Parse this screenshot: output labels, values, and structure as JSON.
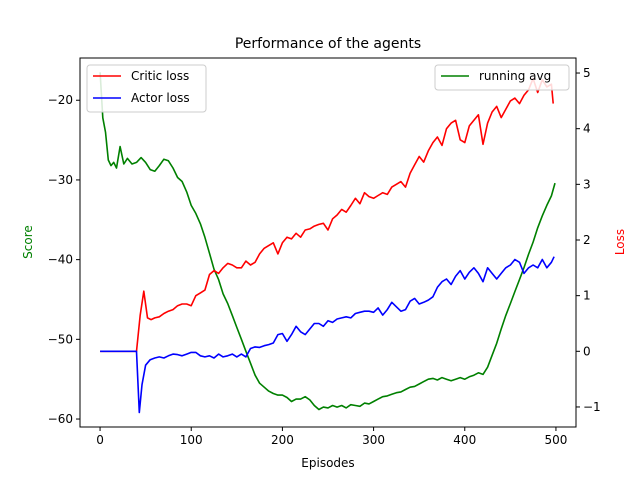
{
  "chart_data": {
    "type": "line",
    "title": "Performance of the agents",
    "xlabel": "Episodes",
    "ylabel_left": "Score",
    "ylabel_right": "Loss",
    "ylabel_left_color": "#008000",
    "ylabel_right_color": "#ff0000",
    "xlim": [
      -22,
      522
    ],
    "ylim_left": [
      -61,
      -14.7
    ],
    "ylim_right": [
      -1.36,
      5.27
    ],
    "x_ticks": [
      0,
      100,
      200,
      300,
      400,
      500
    ],
    "y_left_ticks": [
      -60,
      -50,
      -40,
      -30,
      -20
    ],
    "y_right_ticks": [
      -1,
      0,
      1,
      2,
      3,
      4,
      5
    ],
    "grid": false,
    "legend_left": {
      "placement": "top-left",
      "entries": [
        {
          "label": "Critic loss",
          "color": "#ff0000"
        },
        {
          "label": "Actor loss",
          "color": "#0000ff"
        }
      ]
    },
    "legend_right": {
      "placement": "top-right",
      "entries": [
        {
          "label": "running avg",
          "color": "#008000"
        }
      ]
    },
    "series": [
      {
        "name": "running avg",
        "axis": "left",
        "color": "#008000",
        "x": [
          0,
          3,
          6,
          9,
          12,
          15,
          18,
          22,
          26,
          30,
          35,
          40,
          45,
          50,
          55,
          60,
          65,
          70,
          75,
          80,
          85,
          90,
          95,
          100,
          105,
          110,
          115,
          120,
          125,
          130,
          135,
          140,
          145,
          150,
          155,
          160,
          165,
          170,
          175,
          180,
          185,
          190,
          195,
          200,
          205,
          210,
          215,
          220,
          225,
          230,
          235,
          240,
          245,
          250,
          255,
          260,
          265,
          270,
          275,
          280,
          285,
          290,
          295,
          300,
          305,
          310,
          315,
          320,
          325,
          330,
          335,
          340,
          345,
          350,
          355,
          360,
          365,
          370,
          375,
          380,
          385,
          390,
          395,
          400,
          405,
          410,
          415,
          420,
          425,
          430,
          435,
          440,
          445,
          450,
          455,
          460,
          465,
          470,
          475,
          480,
          485,
          490,
          495,
          499
        ],
        "values": [
          -16.5,
          -22.2,
          -24,
          -27.5,
          -28.2,
          -27.8,
          -28.5,
          -25.8,
          -28,
          -27.3,
          -28,
          -27.8,
          -27.2,
          -27.8,
          -28.7,
          -28.9,
          -28.2,
          -27.4,
          -27.6,
          -28.5,
          -29.7,
          -30.2,
          -31.5,
          -33.2,
          -34.2,
          -35.5,
          -37.2,
          -39.2,
          -41.2,
          -42.5,
          -44.3,
          -45.5,
          -47,
          -48.5,
          -50,
          -51.5,
          -53,
          -54.5,
          -55.5,
          -56,
          -56.5,
          -56.8,
          -57,
          -57,
          -57.3,
          -57.8,
          -57.5,
          -57.5,
          -57.2,
          -57.6,
          -58.3,
          -58.8,
          -58.5,
          -58.6,
          -58.3,
          -58.5,
          -58.3,
          -58.6,
          -58.2,
          -58.3,
          -58.4,
          -58.0,
          -58.1,
          -57.8,
          -57.5,
          -57.2,
          -57.1,
          -56.9,
          -56.7,
          -56.6,
          -56.3,
          -56.0,
          -55.9,
          -55.6,
          -55.3,
          -55.0,
          -54.9,
          -55.1,
          -54.8,
          -55.0,
          -55.2,
          -55.0,
          -54.8,
          -55.0,
          -54.7,
          -54.5,
          -54.2,
          -54.4,
          -53.5,
          -52.0,
          -50.5,
          -48.7,
          -47.0,
          -45.5,
          -44.0,
          -42.5,
          -41.0,
          -39.3,
          -37.8,
          -36.0,
          -34.5,
          -33.2,
          -32.0,
          -30.4
        ]
      },
      {
        "name": "Critic loss",
        "axis": "right",
        "color": "#ff0000",
        "x": [
          0,
          40,
          44,
          48,
          52,
          56,
          60,
          65,
          70,
          75,
          80,
          85,
          90,
          95,
          100,
          105,
          110,
          115,
          120,
          125,
          130,
          135,
          140,
          145,
          150,
          155,
          160,
          165,
          170,
          175,
          180,
          185,
          190,
          195,
          200,
          205,
          210,
          215,
          220,
          225,
          230,
          235,
          240,
          245,
          250,
          255,
          260,
          265,
          270,
          275,
          280,
          285,
          290,
          295,
          300,
          305,
          310,
          315,
          320,
          325,
          330,
          335,
          340,
          345,
          350,
          355,
          360,
          365,
          370,
          375,
          380,
          385,
          390,
          395,
          400,
          405,
          410,
          415,
          420,
          425,
          430,
          435,
          440,
          445,
          450,
          455,
          460,
          465,
          470,
          475,
          480,
          485,
          490,
          495,
          497
        ],
        "values": [
          0.0,
          0.0,
          0.65,
          1.08,
          0.6,
          0.57,
          0.6,
          0.62,
          0.68,
          0.72,
          0.75,
          0.82,
          0.85,
          0.85,
          0.82,
          1.0,
          1.05,
          1.1,
          1.38,
          1.45,
          1.4,
          1.5,
          1.58,
          1.55,
          1.5,
          1.5,
          1.62,
          1.55,
          1.6,
          1.75,
          1.85,
          1.9,
          1.95,
          1.75,
          1.95,
          2.05,
          2.02,
          2.12,
          2.05,
          2.18,
          2.2,
          2.25,
          2.28,
          2.3,
          2.18,
          2.38,
          2.45,
          2.55,
          2.5,
          2.62,
          2.75,
          2.65,
          2.85,
          2.78,
          2.75,
          2.8,
          2.85,
          2.82,
          2.95,
          3.0,
          3.05,
          2.95,
          3.2,
          3.35,
          3.5,
          3.4,
          3.6,
          3.75,
          3.85,
          3.7,
          4.0,
          4.1,
          4.15,
          3.8,
          3.75,
          4.05,
          4.15,
          4.25,
          3.72,
          4.1,
          4.3,
          4.4,
          4.2,
          4.35,
          4.5,
          4.55,
          4.45,
          4.6,
          4.7,
          4.9,
          4.65,
          4.88,
          4.75,
          4.8,
          4.45
        ]
      },
      {
        "name": "Actor loss",
        "axis": "right",
        "color": "#0000ff",
        "x": [
          0,
          40,
          43,
          46,
          50,
          55,
          60,
          65,
          70,
          75,
          80,
          85,
          90,
          95,
          100,
          105,
          110,
          115,
          120,
          125,
          130,
          135,
          140,
          145,
          150,
          155,
          160,
          165,
          170,
          175,
          180,
          185,
          190,
          195,
          200,
          205,
          210,
          215,
          220,
          225,
          230,
          235,
          240,
          245,
          250,
          255,
          260,
          265,
          270,
          275,
          280,
          285,
          290,
          295,
          300,
          305,
          310,
          315,
          320,
          325,
          330,
          335,
          340,
          345,
          350,
          355,
          360,
          365,
          370,
          375,
          380,
          385,
          390,
          395,
          400,
          405,
          410,
          415,
          420,
          425,
          430,
          435,
          440,
          445,
          450,
          455,
          460,
          465,
          470,
          475,
          480,
          485,
          490,
          495,
          498
        ],
        "values": [
          0.0,
          0.0,
          -1.1,
          -0.6,
          -0.25,
          -0.15,
          -0.12,
          -0.1,
          -0.12,
          -0.08,
          -0.05,
          -0.06,
          -0.08,
          -0.05,
          -0.02,
          -0.02,
          -0.08,
          -0.1,
          -0.08,
          -0.12,
          -0.05,
          -0.1,
          -0.08,
          -0.05,
          -0.1,
          -0.05,
          -0.1,
          0.05,
          0.08,
          0.07,
          0.1,
          0.12,
          0.15,
          0.3,
          0.32,
          0.18,
          0.3,
          0.45,
          0.35,
          0.3,
          0.4,
          0.5,
          0.5,
          0.45,
          0.55,
          0.52,
          0.58,
          0.6,
          0.62,
          0.6,
          0.68,
          0.7,
          0.72,
          0.72,
          0.7,
          0.78,
          0.65,
          0.75,
          0.88,
          0.8,
          0.72,
          0.75,
          0.9,
          0.95,
          0.85,
          0.88,
          0.92,
          0.98,
          1.15,
          1.25,
          1.3,
          1.2,
          1.35,
          1.45,
          1.3,
          1.42,
          1.5,
          1.4,
          1.25,
          1.5,
          1.4,
          1.3,
          1.4,
          1.5,
          1.55,
          1.65,
          1.6,
          1.4,
          1.5,
          1.55,
          1.5,
          1.65,
          1.5,
          1.6,
          1.7
        ]
      }
    ]
  }
}
